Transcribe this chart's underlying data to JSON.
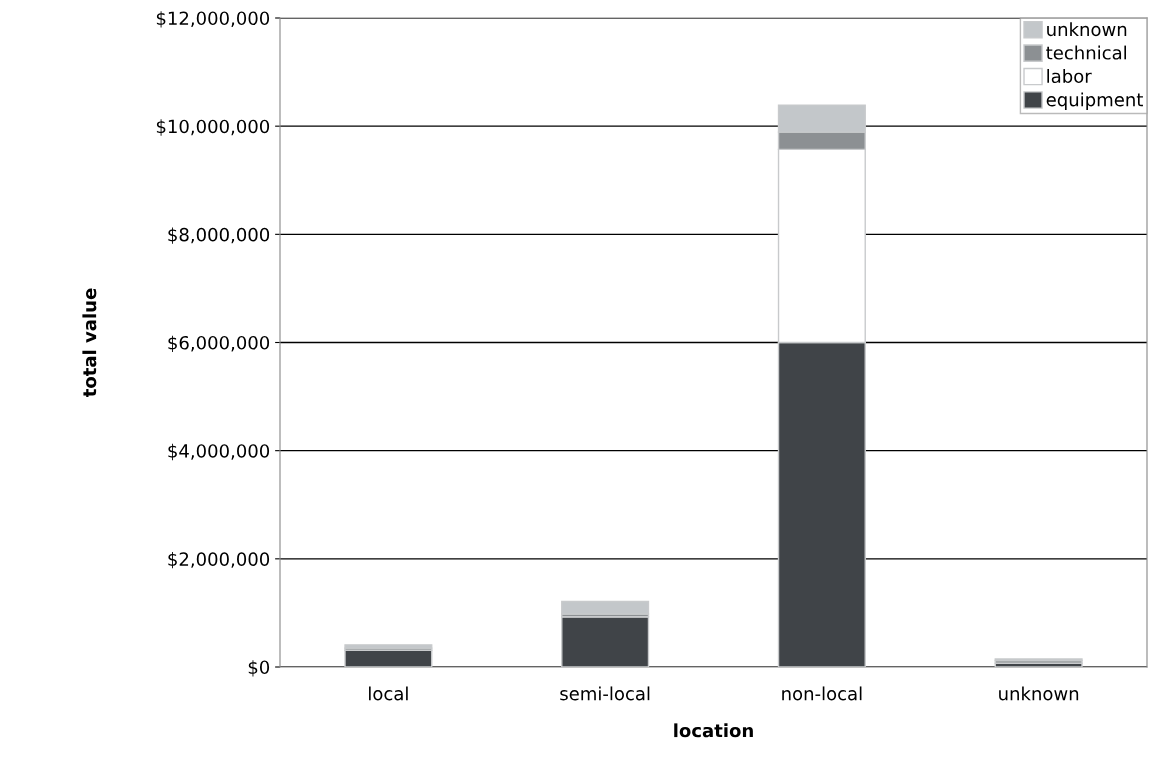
{
  "chart_data": {
    "type": "bar",
    "stacked": true,
    "xlabel": "location",
    "ylabel": "total value",
    "categories": [
      "local",
      "semi-local",
      "non-local",
      "unknown"
    ],
    "series": [
      {
        "name": "equipment",
        "color": "#404448",
        "values": [
          310000,
          930000,
          6000000,
          70000
        ]
      },
      {
        "name": "labor",
        "color": "#ffffff",
        "values": [
          null,
          null,
          3570000,
          null
        ]
      },
      {
        "name": "technical",
        "color": "#8c9093",
        "values": [
          40000,
          50000,
          320000,
          50000
        ]
      },
      {
        "name": "unknown",
        "color": "#c3c7ca",
        "values": [
          60000,
          230000,
          500000,
          30000
        ]
      }
    ],
    "ylim": [
      0,
      12000000
    ],
    "yticks": [
      {
        "value": 0,
        "label": "$0"
      },
      {
        "value": 2000000,
        "label": "$2,000,000"
      },
      {
        "value": 4000000,
        "label": "$4,000,000"
      },
      {
        "value": 6000000,
        "label": "$6,000,000"
      },
      {
        "value": 8000000,
        "label": "$8,000,000"
      },
      {
        "value": 10000000,
        "label": "$10,000,000"
      },
      {
        "value": 12000000,
        "label": "$12,000,000"
      }
    ],
    "grid": "y",
    "legend": "top right"
  }
}
